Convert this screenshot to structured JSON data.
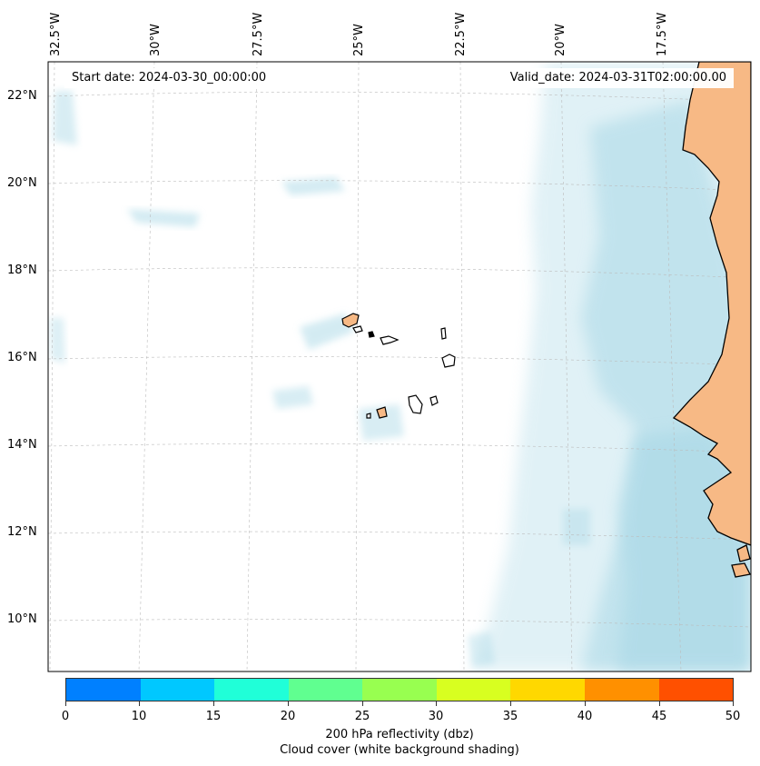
{
  "map": {
    "start_date": "Start date: 2024-03-30_00:00:00",
    "valid_date": "Valid_date: 2024-03-31T02:00:00.00",
    "lon_labels": [
      "32.5°W",
      "30°W",
      "27.5°W",
      "25°W",
      "22.5°W",
      "20°W",
      "17.5°W"
    ],
    "lat_labels": [
      "22°N",
      "20°N",
      "18°N",
      "16°N",
      "14°N",
      "12°N",
      "10°N"
    ],
    "colors": {
      "cloud": "#a9d8e6",
      "land": "#f7b985",
      "coast": "#000000",
      "grid": "#bbbbbb"
    }
  },
  "colorbar": {
    "ticks": [
      "0",
      "10",
      "15",
      "20",
      "25",
      "30",
      "35",
      "40",
      "45",
      "50"
    ],
    "colors": [
      "#0080ff",
      "#00c8ff",
      "#20ffd8",
      "#60ff90",
      "#98ff50",
      "#d8ff20",
      "#ffd800",
      "#ff9000",
      "#ff5000"
    ],
    "label": "200 hPa reflectivity (dbz)",
    "sublabel": "Cloud cover (white background shading)"
  }
}
